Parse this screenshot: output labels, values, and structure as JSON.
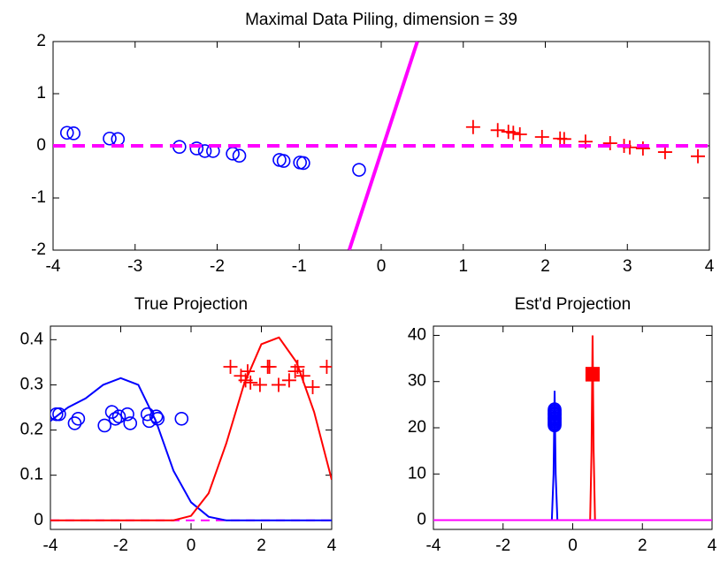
{
  "chart_data": [
    {
      "type": "scatter",
      "title": "Maximal Data Piling, dimension = 39",
      "xlim": [
        -4,
        4
      ],
      "ylim": [
        -2,
        2
      ],
      "xticks": [
        -4,
        -3,
        -2,
        -1,
        0,
        1,
        2,
        3,
        4
      ],
      "yticks": [
        -2,
        -1,
        0,
        1,
        2
      ],
      "series": [
        {
          "kind": "points",
          "marker": "o",
          "color": "#0000ff",
          "x": [
            -3.83,
            -3.75,
            -3.31,
            -3.21,
            -2.46,
            -2.25,
            -2.15,
            -2.05,
            -1.81,
            -1.73,
            -1.24,
            -1.19,
            -0.99,
            -0.95,
            -0.27
          ],
          "values": [
            0.25,
            0.24,
            0.14,
            0.13,
            -0.02,
            -0.05,
            -0.1,
            -0.1,
            -0.15,
            -0.19,
            -0.27,
            -0.29,
            -0.32,
            -0.33,
            -0.46
          ]
        },
        {
          "kind": "points",
          "marker": "+",
          "color": "#ff0000",
          "x": [
            1.12,
            1.42,
            1.55,
            1.61,
            1.69,
            1.96,
            2.18,
            2.23,
            2.49,
            2.79,
            2.96,
            3.03,
            3.19,
            3.46,
            3.86
          ],
          "values": [
            0.36,
            0.3,
            0.27,
            0.25,
            0.22,
            0.17,
            0.14,
            0.13,
            0.08,
            0.05,
            0.0,
            -0.03,
            -0.05,
            -0.12,
            -0.2
          ]
        },
        {
          "kind": "line",
          "style": "dashed",
          "color": "#ff00ff",
          "x": [
            -4,
            4
          ],
          "values": [
            0,
            0
          ]
        },
        {
          "kind": "line",
          "style": "solid",
          "color": "#ff00ff",
          "x": [
            -0.39,
            0.44
          ],
          "values": [
            -2,
            2
          ]
        }
      ]
    },
    {
      "type": "scatter",
      "title": "True Projection",
      "xlim": [
        -4,
        4
      ],
      "ylim": [
        -0.02,
        0.43
      ],
      "xticks": [
        -4,
        -2,
        0,
        2,
        4
      ],
      "yticks": [
        0,
        0.1,
        0.2,
        0.3,
        0.4
      ],
      "series": [
        {
          "kind": "line",
          "style": "dashed",
          "color": "#ff00ff",
          "x": [
            -4,
            4
          ],
          "values": [
            0,
            0
          ]
        },
        {
          "kind": "line",
          "style": "solid",
          "color": "#0000ff",
          "x": [
            -4,
            -3.5,
            -3,
            -2.5,
            -2,
            -1.5,
            -1,
            -0.5,
            0,
            0.5,
            1,
            1.5,
            2,
            2.5,
            3,
            3.5,
            4
          ],
          "values": [
            0.22,
            0.25,
            0.27,
            0.3,
            0.315,
            0.3,
            0.22,
            0.11,
            0.04,
            0.008,
            0,
            0,
            0,
            0,
            0,
            0,
            0
          ]
        },
        {
          "kind": "line",
          "style": "solid",
          "color": "#ff0000",
          "x": [
            -4,
            -3.5,
            -3,
            -2.5,
            -2,
            -1.5,
            -1,
            -0.5,
            0,
            0.5,
            1,
            1.5,
            2,
            2.5,
            3,
            3.5,
            4
          ],
          "values": [
            0,
            0,
            0,
            0,
            0,
            0,
            0,
            0,
            0.01,
            0.06,
            0.17,
            0.3,
            0.39,
            0.405,
            0.35,
            0.24,
            0.09
          ]
        },
        {
          "kind": "points",
          "marker": "o",
          "color": "#0000ff",
          "x": [
            -3.83,
            -3.75,
            -3.31,
            -3.21,
            -2.46,
            -2.25,
            -2.15,
            -2.05,
            -1.81,
            -1.73,
            -1.24,
            -1.19,
            -0.99,
            -0.95,
            -0.27
          ],
          "values": [
            0.235,
            0.235,
            0.215,
            0.225,
            0.21,
            0.24,
            0.225,
            0.23,
            0.235,
            0.215,
            0.235,
            0.22,
            0.23,
            0.225,
            0.225
          ]
        },
        {
          "kind": "points",
          "marker": "+",
          "color": "#ff0000",
          "x": [
            1.12,
            1.42,
            1.55,
            1.61,
            1.69,
            1.96,
            2.18,
            2.23,
            2.49,
            2.79,
            2.96,
            3.03,
            3.19,
            3.46,
            3.86
          ],
          "values": [
            0.34,
            0.32,
            0.31,
            0.33,
            0.305,
            0.3,
            0.34,
            0.34,
            0.3,
            0.31,
            0.33,
            0.34,
            0.32,
            0.295,
            0.34
          ]
        }
      ]
    },
    {
      "type": "scatter",
      "title": "Est'd Projection",
      "xlim": [
        -4,
        4
      ],
      "ylim": [
        -2,
        42
      ],
      "xticks": [
        -4,
        -2,
        0,
        2,
        4
      ],
      "yticks": [
        0,
        10,
        20,
        30,
        40
      ],
      "series": [
        {
          "kind": "line",
          "style": "solid",
          "color": "#0000ff",
          "x": [
            -4,
            -0.6,
            -0.55,
            -0.52,
            -0.49,
            -0.44,
            4
          ],
          "values": [
            0,
            0,
            10,
            28,
            10,
            0,
            0
          ]
        },
        {
          "kind": "line",
          "style": "solid",
          "color": "#ff0000",
          "x": [
            -4,
            0.5,
            0.54,
            0.57,
            0.6,
            0.64,
            4
          ],
          "values": [
            0,
            0,
            15,
            40,
            15,
            0,
            0
          ]
        },
        {
          "kind": "line",
          "style": "solid",
          "color": "#ff00ff",
          "x": [
            -4,
            4
          ],
          "values": [
            0,
            0
          ]
        },
        {
          "kind": "points",
          "marker": "o",
          "color": "#0000ff",
          "x": [
            -0.52,
            -0.52,
            -0.52,
            -0.52,
            -0.52,
            -0.52,
            -0.52,
            -0.52,
            -0.52,
            -0.52,
            -0.52,
            -0.52,
            -0.52,
            -0.52,
            -0.52
          ],
          "values": [
            20.5,
            20.8,
            21,
            21.3,
            21.5,
            21.8,
            22,
            22.2,
            22.5,
            22.8,
            23,
            23.2,
            23.5,
            23.7,
            24
          ]
        },
        {
          "kind": "points",
          "marker": "+",
          "color": "#ff0000",
          "x": [
            0.57,
            0.57,
            0.57,
            0.57,
            0.57,
            0.57,
            0.57,
            0.57,
            0.57,
            0.57,
            0.57,
            0.57,
            0.57,
            0.57,
            0.57
          ],
          "values": [
            30.2,
            30.4,
            30.6,
            30.8,
            31,
            31.2,
            31.4,
            31.6,
            31.8,
            32,
            32.2,
            32.4,
            32.6,
            32.8,
            33
          ]
        }
      ]
    }
  ]
}
